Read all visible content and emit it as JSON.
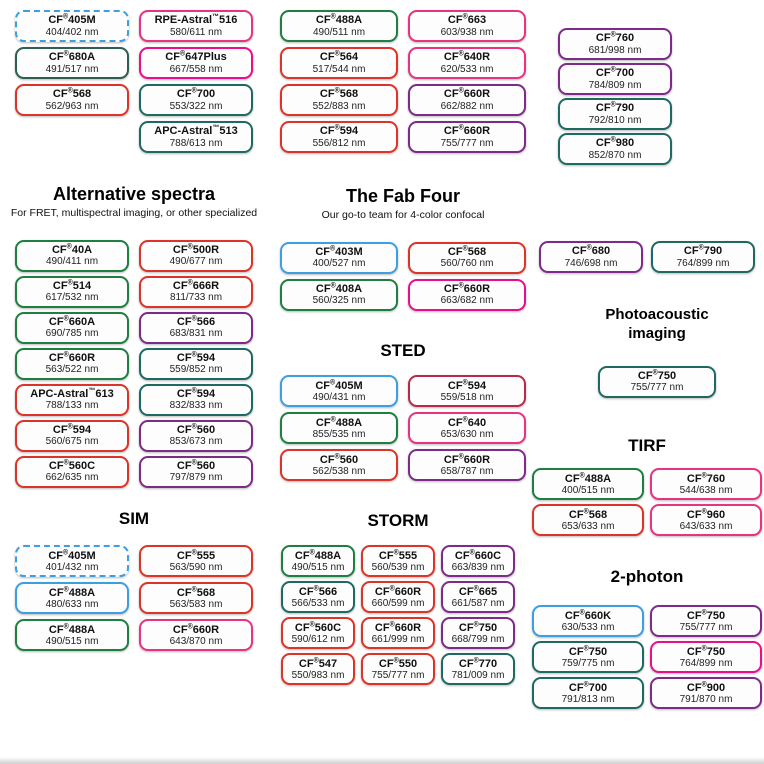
{
  "palette": {
    "blue": "#3D9EE0",
    "green": "#1E7F41",
    "forest": "#2E5E4C",
    "teal": "#1E6A62",
    "red": "#DC3428",
    "crimson": "#B72B48",
    "pink": "#E73380",
    "magenta": "#EB0D8C",
    "purple": "#7C2C87"
  },
  "sections": [
    {
      "key": "top-left",
      "columns": [
        [
          {
            "label": "CF®405M",
            "exem": "404/402 nm",
            "color": "blue",
            "dashed": true
          },
          {
            "label": "CF®680A",
            "exem": "491/517 nm",
            "color": "forest"
          },
          {
            "label": "CF®568",
            "exem": "562/963 nm",
            "color": "red"
          }
        ],
        [
          {
            "label": "RPE-Astral™516",
            "exem": "580/611 nm",
            "color": "pink"
          },
          {
            "label": "CF®647Plus",
            "exem": "667/558 nm",
            "color": "magenta"
          },
          {
            "label": "CF®700",
            "exem": "553/322 nm",
            "color": "teal"
          },
          {
            "label": "APC-Astral™513",
            "exem": "788/613 nm",
            "color": "teal"
          }
        ]
      ]
    },
    {
      "key": "top-mid",
      "columns": [
        [
          {
            "label": "CF®488A",
            "exem": "490/511 nm",
            "color": "green"
          },
          {
            "label": "CF®564",
            "exem": "517/544 nm",
            "color": "red"
          },
          {
            "label": "CF®568",
            "exem": "552/883 nm",
            "color": "red"
          },
          {
            "label": "CF®594",
            "exem": "556/812 nm",
            "color": "red"
          }
        ],
        [
          {
            "label": "CF®663",
            "exem": "603/938 nm",
            "color": "pink"
          },
          {
            "label": "CF®640R",
            "exem": "620/533 nm",
            "color": "pink"
          },
          {
            "label": "CF®660R",
            "exem": "662/882 nm",
            "color": "purple"
          },
          {
            "label": "CF®660R",
            "exem": "755/777 nm",
            "color": "purple"
          }
        ]
      ]
    },
    {
      "key": "top-right",
      "columns": [
        [
          {
            "label": "CF®760",
            "exem": "681/998 nm",
            "color": "purple"
          },
          {
            "label": "CF®700",
            "exem": "784/809 nm",
            "color": "purple"
          },
          {
            "label": "CF®790",
            "exem": "792/810 nm",
            "color": "teal"
          },
          {
            "label": "CF®980",
            "exem": "852/870 nm",
            "color": "teal"
          }
        ]
      ]
    },
    {
      "key": "right-pair",
      "columns": [
        [
          {
            "label": "CF®680",
            "exem": "746/698 nm",
            "color": "purple"
          }
        ],
        [
          {
            "label": "CF®790",
            "exem": "764/899 nm",
            "color": "teal"
          }
        ]
      ]
    },
    {
      "key": "alt",
      "title": "Alternative spectra",
      "subtitle": "For FRET, multispectral imaging, or other specialized",
      "columns": [
        [
          {
            "label": "CF®40A",
            "exem": "490/411 nm",
            "color": "green"
          },
          {
            "label": "CF®514",
            "exem": "617/532 nm",
            "color": "green"
          },
          {
            "label": "CF®660A",
            "exem": "690/785 nm",
            "color": "green"
          },
          {
            "label": "CF®660R",
            "exem": "563/522 nm",
            "color": "green"
          },
          {
            "label": "APC-Astral™613",
            "exem": "788/133 nm",
            "color": "red"
          },
          {
            "label": "CF®594",
            "exem": "560/675 nm",
            "color": "red"
          },
          {
            "label": "CF®560C",
            "exem": "662/635 nm",
            "color": "red"
          }
        ],
        [
          {
            "label": "CF®500R",
            "exem": "490/677 nm",
            "color": "red"
          },
          {
            "label": "CF®666R",
            "exem": "811/733 nm",
            "color": "red"
          },
          {
            "label": "CF®566",
            "exem": "683/831 nm",
            "color": "purple"
          },
          {
            "label": "CF®594",
            "exem": "559/852 nm",
            "color": "teal"
          },
          {
            "label": "CF®594",
            "exem": "832/833 nm",
            "color": "teal"
          },
          {
            "label": "CF®560",
            "exem": "853/673 nm",
            "color": "purple"
          },
          {
            "label": "CF®560",
            "exem": "797/879 nm",
            "color": "purple"
          }
        ]
      ]
    },
    {
      "key": "fab",
      "title": "The Fab Four",
      "subtitle": "Our go-to team for 4-color confocal",
      "columns": [
        [
          {
            "label": "CF®403M",
            "exem": "400/527 nm",
            "color": "blue"
          },
          {
            "label": "CF®408A",
            "exem": "560/325 nm",
            "color": "green"
          }
        ],
        [
          {
            "label": "CF®568",
            "exem": "560/760 nm",
            "color": "red"
          },
          {
            "label": "CF®660R",
            "exem": "663/682 nm",
            "color": "magenta"
          }
        ]
      ]
    },
    {
      "key": "sted",
      "title": "STED",
      "columns": [
        [
          {
            "label": "CF®405M",
            "exem": "490/431 nm",
            "color": "blue"
          },
          {
            "label": "CF®488A",
            "exem": "855/535 nm",
            "color": "green"
          },
          {
            "label": "CF®560",
            "exem": "562/538 nm",
            "color": "red"
          }
        ],
        [
          {
            "label": "CF®594",
            "exem": "559/518 nm",
            "color": "crimson"
          },
          {
            "label": "CF®640",
            "exem": "653/630 nm",
            "color": "pink"
          },
          {
            "label": "CF®660R",
            "exem": "658/787 nm",
            "color": "purple"
          }
        ]
      ]
    },
    {
      "key": "sim",
      "title": "SIM",
      "columns": [
        [
          {
            "label": "CF®405M",
            "exem": "401/432 nm",
            "color": "blue",
            "dashed": true
          },
          {
            "label": "CF®488A",
            "exem": "480/633 nm",
            "color": "blue"
          },
          {
            "label": "CF®488A",
            "exem": "490/515 nm",
            "color": "green"
          }
        ],
        [
          {
            "label": "CF®555",
            "exem": "563/590 nm",
            "color": "red"
          },
          {
            "label": "CF®568",
            "exem": "563/583 nm",
            "color": "red"
          },
          {
            "label": "CF®660R",
            "exem": "643/870 nm",
            "color": "pink"
          }
        ]
      ]
    },
    {
      "key": "storm",
      "title": "STORM",
      "columns": [
        [
          {
            "label": "CF®488A",
            "exem": "490/515 nm",
            "color": "green"
          },
          {
            "label": "CF®566",
            "exem": "566/533 nm",
            "color": "teal"
          },
          {
            "label": "CF®560C",
            "exem": "590/612 nm",
            "color": "red"
          },
          {
            "label": "CF®547",
            "exem": "550/983 nm",
            "color": "red"
          }
        ],
        [
          {
            "label": "CF®555",
            "exem": "560/539 nm",
            "color": "red"
          },
          {
            "label": "CF®660R",
            "exem": "660/599 nm",
            "color": "red"
          },
          {
            "label": "CF®660R",
            "exem": "661/999 nm",
            "color": "red"
          },
          {
            "label": "CF®550",
            "exem": "755/777 nm",
            "color": "red"
          }
        ],
        [
          {
            "label": "CF®660C",
            "exem": "663/839 nm",
            "color": "purple"
          },
          {
            "label": "CF®665",
            "exem": "661/587 nm",
            "color": "purple"
          },
          {
            "label": "CF®750",
            "exem": "668/799 nm",
            "color": "purple"
          },
          {
            "label": "CF®770",
            "exem": "781/009 nm",
            "color": "teal"
          }
        ]
      ]
    },
    {
      "key": "photo",
      "title": "Photoacoustic imaging",
      "columns": [
        [
          {
            "label": "CF®750",
            "exem": "755/777 nm",
            "color": "teal"
          }
        ]
      ]
    },
    {
      "key": "tirf",
      "title": "TIRF",
      "columns": [
        [
          {
            "label": "CF®488A",
            "exem": "400/515 nm",
            "color": "green"
          },
          {
            "label": "CF®568",
            "exem": "653/633 nm",
            "color": "red"
          }
        ],
        [
          {
            "label": "CF®760",
            "exem": "544/638 nm",
            "color": "pink"
          },
          {
            "label": "CF®960",
            "exem": "643/633 nm",
            "color": "pink"
          }
        ]
      ]
    },
    {
      "key": "2p",
      "title": "2-photon",
      "columns": [
        [
          {
            "label": "CF®660K",
            "exem": "630/533 nm",
            "color": "blue"
          },
          {
            "label": "CF®750",
            "exem": "759/775 nm",
            "color": "teal"
          },
          {
            "label": "CF®700",
            "exem": "791/813 nm",
            "color": "teal"
          }
        ],
        [
          {
            "label": "CF®750",
            "exem": "755/777 nm",
            "color": "purple"
          },
          {
            "label": "CF®750",
            "exem": "764/899 nm",
            "color": "magenta"
          },
          {
            "label": "CF®900",
            "exem": "791/870 nm",
            "color": "purple"
          }
        ]
      ]
    }
  ]
}
